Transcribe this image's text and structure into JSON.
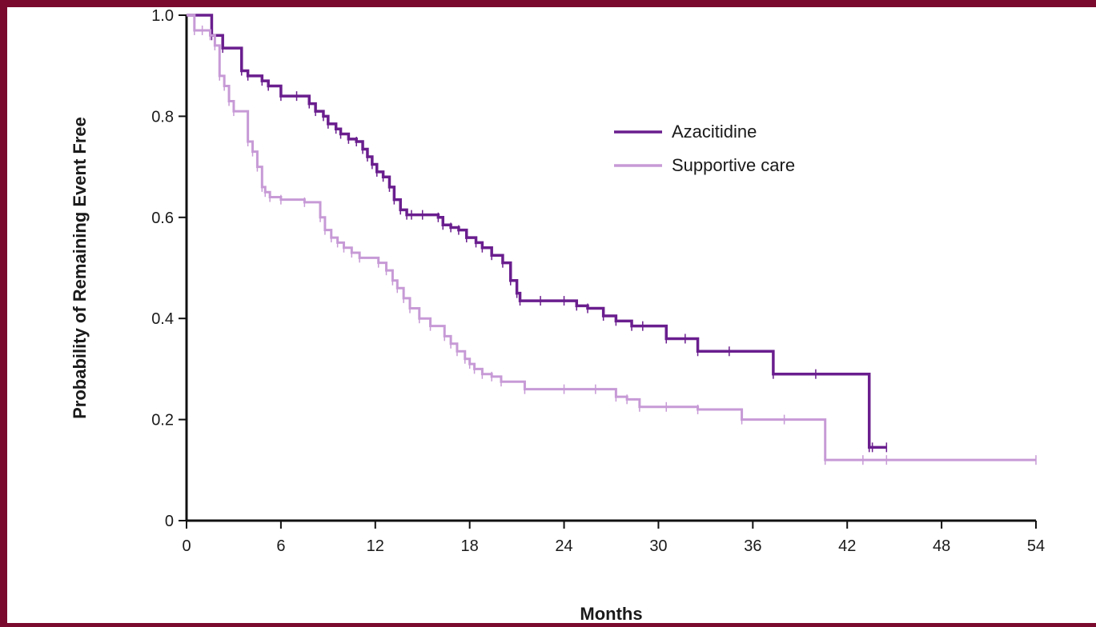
{
  "colors": {
    "frame": "#7a0a2e",
    "background": "#ffffff",
    "azacitidine": "#6a1e8e",
    "supportive_care": "#c79ad6",
    "axis": "#111111"
  },
  "chart_data": {
    "type": "line",
    "step": true,
    "title": "",
    "xlabel": "Months",
    "ylabel": "Probability of Remaining Event Free",
    "xlim": [
      0,
      54
    ],
    "ylim": [
      0,
      1
    ],
    "xticks": [
      0,
      6,
      12,
      18,
      24,
      30,
      36,
      42,
      48,
      54
    ],
    "yticks": [
      0,
      0.2,
      0.4,
      0.6,
      0.8,
      1.0
    ],
    "xtick_labels": [
      "0",
      "6",
      "12",
      "18",
      "24",
      "30",
      "36",
      "42",
      "48",
      "54"
    ],
    "ytick_labels": [
      "0",
      "0.2",
      "0.4",
      "0.6",
      "0.8",
      "1.0"
    ],
    "grid": false,
    "legend_position": "upper-right",
    "series": [
      {
        "name": "Azacitidine",
        "color": "#6a1e8e",
        "x": [
          0,
          1.6,
          2.3,
          3.5,
          3.9,
          4.8,
          5.2,
          6.0,
          7.0,
          7.8,
          8.2,
          8.7,
          9.0,
          9.5,
          9.8,
          10.3,
          10.8,
          11.2,
          11.5,
          11.8,
          12.1,
          12.5,
          12.9,
          13.2,
          13.6,
          14.0,
          14.3,
          15.0,
          16.0,
          16.3,
          16.8,
          17.3,
          17.8,
          18.4,
          18.8,
          19.4,
          20.1,
          20.6,
          21.0,
          21.2,
          22.5,
          24.0,
          24.8,
          25.5,
          26.5,
          27.3,
          28.3,
          29.0,
          30.5,
          31.7,
          32.5,
          34.5,
          37.3,
          40.0,
          43.4,
          43.6,
          44.5
        ],
        "y": [
          1.0,
          0.96,
          0.935,
          0.89,
          0.88,
          0.87,
          0.86,
          0.84,
          0.84,
          0.825,
          0.81,
          0.8,
          0.785,
          0.775,
          0.765,
          0.755,
          0.75,
          0.735,
          0.72,
          0.705,
          0.69,
          0.68,
          0.66,
          0.635,
          0.615,
          0.605,
          0.605,
          0.605,
          0.6,
          0.585,
          0.58,
          0.575,
          0.56,
          0.55,
          0.54,
          0.525,
          0.51,
          0.475,
          0.45,
          0.435,
          0.435,
          0.435,
          0.425,
          0.42,
          0.405,
          0.395,
          0.385,
          0.385,
          0.36,
          0.36,
          0.335,
          0.335,
          0.29,
          0.29,
          0.145,
          0.145,
          0.145
        ]
      },
      {
        "name": "Supportive care",
        "color": "#c79ad6",
        "x": [
          0,
          0.5,
          1.0,
          1.5,
          1.8,
          2.1,
          2.4,
          2.7,
          3.0,
          3.9,
          4.2,
          4.5,
          4.8,
          5.0,
          5.3,
          6.0,
          7.5,
          8.5,
          8.8,
          9.2,
          9.6,
          10.0,
          10.5,
          11.0,
          12.2,
          12.7,
          13.1,
          13.4,
          13.8,
          14.2,
          14.8,
          15.5,
          16.4,
          16.8,
          17.2,
          17.7,
          18.0,
          18.3,
          18.8,
          19.4,
          20.0,
          21.5,
          24.0,
          26.0,
          27.3,
          28.0,
          28.8,
          30.5,
          32.5,
          35.3,
          38.0,
          40.6,
          43.0,
          44.5,
          54.0
        ],
        "y": [
          1.0,
          0.97,
          0.97,
          0.96,
          0.94,
          0.88,
          0.86,
          0.83,
          0.81,
          0.75,
          0.73,
          0.7,
          0.66,
          0.65,
          0.64,
          0.635,
          0.63,
          0.6,
          0.575,
          0.56,
          0.55,
          0.54,
          0.53,
          0.52,
          0.51,
          0.495,
          0.475,
          0.46,
          0.44,
          0.42,
          0.4,
          0.385,
          0.365,
          0.35,
          0.335,
          0.32,
          0.31,
          0.3,
          0.29,
          0.285,
          0.275,
          0.26,
          0.26,
          0.26,
          0.245,
          0.24,
          0.225,
          0.225,
          0.22,
          0.2,
          0.2,
          0.12,
          0.12,
          0.12,
          0.12
        ]
      }
    ]
  }
}
